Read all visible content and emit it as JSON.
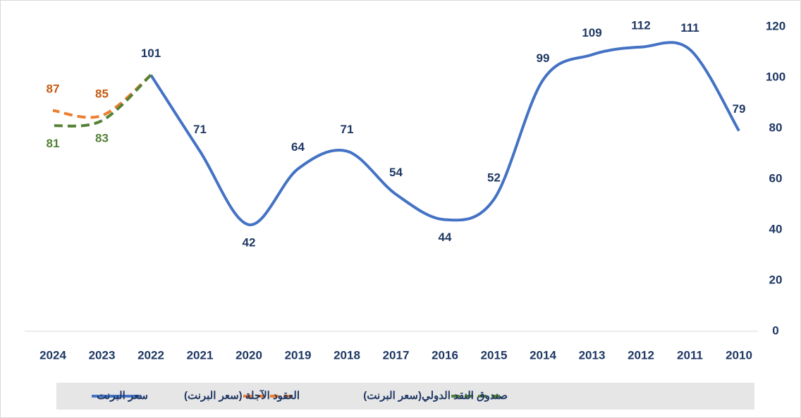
{
  "chart_data": {
    "type": "line",
    "categories": [
      "2010",
      "2011",
      "2012",
      "2013",
      "2014",
      "2015",
      "2016",
      "2017",
      "2018",
      "2019",
      "2020",
      "2021",
      "2022",
      "2023",
      "2024"
    ],
    "x_reversed": true,
    "y_axis_side": "right",
    "smooth": true,
    "ylim": [
      0,
      120
    ],
    "yticks": [
      0,
      20,
      40,
      60,
      80,
      100,
      120
    ],
    "legend": "bottom",
    "series": [
      {
        "name": "سعر البرنت",
        "color": "#4472c4",
        "label_color": "#1f3864",
        "dashed": false,
        "values": [
          79,
          111,
          112,
          109,
          99,
          52,
          44,
          54,
          71,
          64,
          42,
          71,
          101,
          null,
          null
        ]
      },
      {
        "name": "العقود الآجلة (سعر البرنت)",
        "color": "#ed7d31",
        "label_color": "#c55a11",
        "dashed": true,
        "values": [
          null,
          null,
          null,
          null,
          null,
          null,
          null,
          null,
          null,
          null,
          null,
          null,
          101,
          85,
          87
        ]
      },
      {
        "name": "صندوق النقد الدولي(سعر البرنت)",
        "color": "#548235",
        "label_color": "#538135",
        "dashed": true,
        "values": [
          null,
          null,
          null,
          null,
          null,
          null,
          null,
          null,
          null,
          null,
          null,
          null,
          101,
          83,
          81
        ]
      }
    ]
  }
}
